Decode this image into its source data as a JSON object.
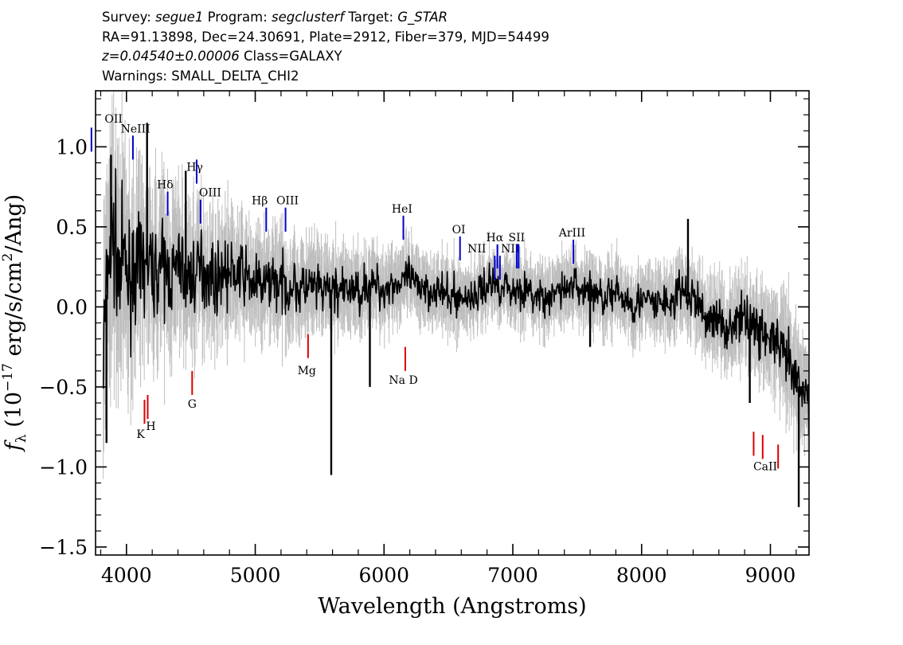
{
  "header": {
    "line1": {
      "survey_label": "Survey: ",
      "survey": "segue1",
      "program_label": " Program: ",
      "program": "segclusterf",
      "target_label": " Target: ",
      "target": "G_STAR"
    },
    "line2": "RA=91.13898, Dec=24.30691, Plate=2912, Fiber=379, MJD=54499",
    "line3": {
      "redshift": "z=0.04540±0.00006",
      "class": " Class=GALAXY"
    },
    "line4": "Warnings: SMALL_DELTA_CHI2"
  },
  "chart_data": {
    "type": "line",
    "xlabel": "Wavelength (Angstroms)",
    "ylabel_base": "f",
    "ylabel_sub": "λ",
    "ylabel_unit": " (10",
    "ylabel_exp": "−17",
    "ylabel_rest": " erg/s/cm",
    "ylabel_exp2": "2",
    "ylabel_end": "/Ang)",
    "xlim": [
      3760,
      9300
    ],
    "ylim": [
      -1.55,
      1.35
    ],
    "x_ticks": [
      4000,
      5000,
      6000,
      7000,
      8000,
      9000
    ],
    "x_tick_labels": [
      "4000",
      "5000",
      "6000",
      "7000",
      "8000",
      "9000"
    ],
    "y_ticks": [
      1.0,
      0.5,
      0.0,
      -0.5,
      -1.0,
      -1.5
    ],
    "y_tick_labels": [
      "1.0",
      "0.5",
      "0.0",
      "−0.5",
      "−1.0",
      "−1.5"
    ],
    "colors": {
      "flux": "#000000",
      "error_band": "#bebebe",
      "emission": "#0000cc",
      "absorption": "#dd0000"
    },
    "series": [
      {
        "role": "flux",
        "x_start": 3820,
        "x_step": 40,
        "values": [
          -0.3,
          0.3,
          0.45,
          0.2,
          0.3,
          0.15,
          0.25,
          0.2,
          0.3,
          0.25,
          0.2,
          0.28,
          0.22,
          0.2,
          0.22,
          0.3,
          0.15,
          0.2,
          0.2,
          0.25,
          0.22,
          0.2,
          0.15,
          0.25,
          0.2,
          0.2,
          0.22,
          0.2,
          0.18,
          0.15,
          0.15,
          0.12,
          0.15,
          0.2,
          0.12,
          0.15,
          0.1,
          0.15,
          0.1,
          0.12,
          0.12,
          0.12,
          0.1,
          0.1,
          0.1,
          0.12,
          0.1,
          0.08,
          0.12,
          0.1,
          0.1,
          0.15,
          0.12,
          0.15,
          0.1,
          0.12,
          0.15,
          0.15,
          0.12,
          0.2,
          0.15,
          0.12,
          0.15,
          0.1,
          0.12,
          0.1,
          0.08,
          0.05,
          0.08,
          0.05,
          0.05,
          0.08,
          0.05,
          0.1,
          0.12,
          0.15,
          0.15,
          0.12,
          0.15,
          0.1,
          0.1,
          0.12,
          0.1,
          0.08,
          0.05,
          0.08,
          0.0,
          0.05,
          0.1,
          0.12,
          0.1,
          0.15,
          0.12,
          0.1,
          0.12,
          0.1,
          0.08,
          0.05,
          0.1,
          0.05,
          0.08,
          0.05,
          0.05,
          0.0,
          0.05,
          0.02,
          0.05,
          0.0,
          0.02,
          0.05,
          0.0,
          0.05,
          0.1,
          0.08,
          0.05,
          0.05,
          0.0,
          -0.1,
          -0.05,
          -0.1,
          -0.08,
          -0.15,
          -0.1,
          -0.1,
          -0.08,
          -0.05,
          -0.1,
          -0.15,
          -0.15,
          -0.2,
          -0.2,
          -0.25,
          -0.3,
          -0.35,
          -0.45,
          -0.5,
          -0.55,
          -0.6,
          -0.7,
          -0.7,
          -0.75,
          -1.25
        ]
      },
      {
        "role": "spikes",
        "points": [
          [
            3845,
            -0.85
          ],
          [
            3880,
            0.95
          ],
          [
            4160,
            1.15
          ],
          [
            4460,
            0.85
          ],
          [
            5590,
            -1.05
          ],
          [
            5890,
            -0.5
          ],
          [
            8360,
            0.55
          ],
          [
            8840,
            -0.6
          ],
          [
            7600,
            -0.25
          ],
          [
            9220,
            -1.25
          ]
        ]
      }
    ],
    "error_band_halfwidth": {
      "x": [
        3820,
        4200,
        4600,
        5000,
        5400,
        6000,
        7000,
        8000,
        8500,
        9000,
        9220
      ],
      "values": [
        0.55,
        0.35,
        0.28,
        0.22,
        0.2,
        0.16,
        0.14,
        0.15,
        0.17,
        0.2,
        0.25
      ]
    },
    "line_markers": [
      {
        "label": "OII",
        "x": 3728,
        "kind": "emission",
        "y1": 0.97,
        "y2": 1.12,
        "lx": 3900,
        "ly": 1.15
      },
      {
        "label": "NeIII",
        "x": 4050,
        "kind": "emission",
        "y1": 0.92,
        "y2": 1.07,
        "lx": 4070,
        "ly": 1.09
      },
      {
        "label": "Hδ",
        "x": 4320,
        "kind": "emission",
        "y1": 0.57,
        "y2": 0.72,
        "lx": 4300,
        "ly": 0.74
      },
      {
        "label": "Hγ",
        "x": 4545,
        "kind": "emission",
        "y1": 0.77,
        "y2": 0.92,
        "lx": 4530,
        "ly": 0.85
      },
      {
        "label": "OIII",
        "x": 4575,
        "kind": "emission",
        "y1": 0.52,
        "y2": 0.67,
        "lx": 4650,
        "ly": 0.69
      },
      {
        "label": "Hβ",
        "x": 5085,
        "kind": "emission",
        "y1": 0.47,
        "y2": 0.62,
        "lx": 5035,
        "ly": 0.64
      },
      {
        "label": "OIII",
        "x": 5235,
        "kind": "emission",
        "y1": 0.47,
        "y2": 0.62,
        "lx": 5250,
        "ly": 0.64
      },
      {
        "label": "HeI",
        "x": 6150,
        "kind": "emission",
        "y1": 0.42,
        "y2": 0.57,
        "lx": 6140,
        "ly": 0.59
      },
      {
        "label": "OI",
        "x": 6590,
        "kind": "emission",
        "y1": 0.29,
        "y2": 0.44,
        "lx": 6580,
        "ly": 0.46
      },
      {
        "label": "NII",
        "x": 6860,
        "kind": "emission",
        "y1": 0.17,
        "y2": 0.32,
        "lx": 6720,
        "ly": 0.34
      },
      {
        "label": "Hα",
        "x": 6880,
        "kind": "emission",
        "y1": 0.24,
        "y2": 0.39,
        "lx": 6860,
        "ly": 0.41
      },
      {
        "label": "NII",
        "x": 6900,
        "kind": "emission",
        "y1": 0.17,
        "y2": 0.32,
        "lx": 6980,
        "ly": 0.34
      },
      {
        "label": "SII",
        "x": 7030,
        "kind": "emission",
        "y1": 0.24,
        "y2": 0.39,
        "lx": 7030,
        "ly": 0.41
      },
      {
        "label": "",
        "x": 7045,
        "kind": "emission",
        "y1": 0.24,
        "y2": 0.39,
        "lx": 0,
        "ly": 0
      },
      {
        "label": "ArIII",
        "x": 7470,
        "kind": "emission",
        "y1": 0.27,
        "y2": 0.42,
        "lx": 7460,
        "ly": 0.44
      },
      {
        "label": "K",
        "x": 4140,
        "kind": "absorption",
        "y1": -0.73,
        "y2": -0.58,
        "lx": 4110,
        "ly": -0.82
      },
      {
        "label": "H",
        "x": 4165,
        "kind": "absorption",
        "y1": -0.7,
        "y2": -0.55,
        "lx": 4190,
        "ly": -0.77
      },
      {
        "label": "G",
        "x": 4510,
        "kind": "absorption",
        "y1": -0.55,
        "y2": -0.4,
        "lx": 4510,
        "ly": -0.63
      },
      {
        "label": "Mg",
        "x": 5410,
        "kind": "absorption",
        "y1": -0.32,
        "y2": -0.17,
        "lx": 5400,
        "ly": -0.42
      },
      {
        "label": "Na D",
        "x": 6165,
        "kind": "absorption",
        "y1": -0.4,
        "y2": -0.25,
        "lx": 6150,
        "ly": -0.48
      },
      {
        "label": "CaII",
        "x": 8940,
        "kind": "absorption",
        "y1": -0.95,
        "y2": -0.8,
        "lx": 8960,
        "ly": -1.02
      },
      {
        "label": "",
        "x": 8870,
        "kind": "absorption",
        "y1": -0.93,
        "y2": -0.78,
        "lx": 0,
        "ly": 0
      },
      {
        "label": "",
        "x": 9060,
        "kind": "absorption",
        "y1": -1.01,
        "y2": -0.86,
        "lx": 0,
        "ly": 0
      }
    ]
  }
}
